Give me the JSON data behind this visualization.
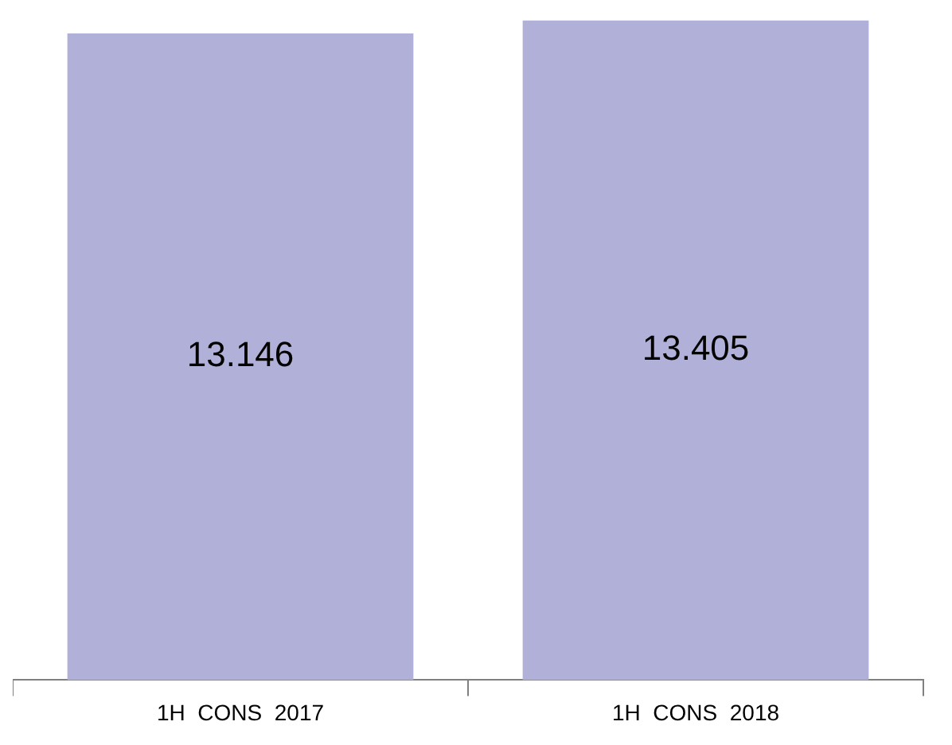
{
  "chart_data": {
    "type": "bar",
    "categories": [
      "1H  CONS  2017",
      "1H  CONS  2018"
    ],
    "values": [
      13.146,
      13.405
    ],
    "color": "#b0b0d8",
    "ylim": [
      0,
      13.5
    ],
    "data_labels": true,
    "grid": false,
    "legend": false,
    "tick_labels": "x"
  }
}
